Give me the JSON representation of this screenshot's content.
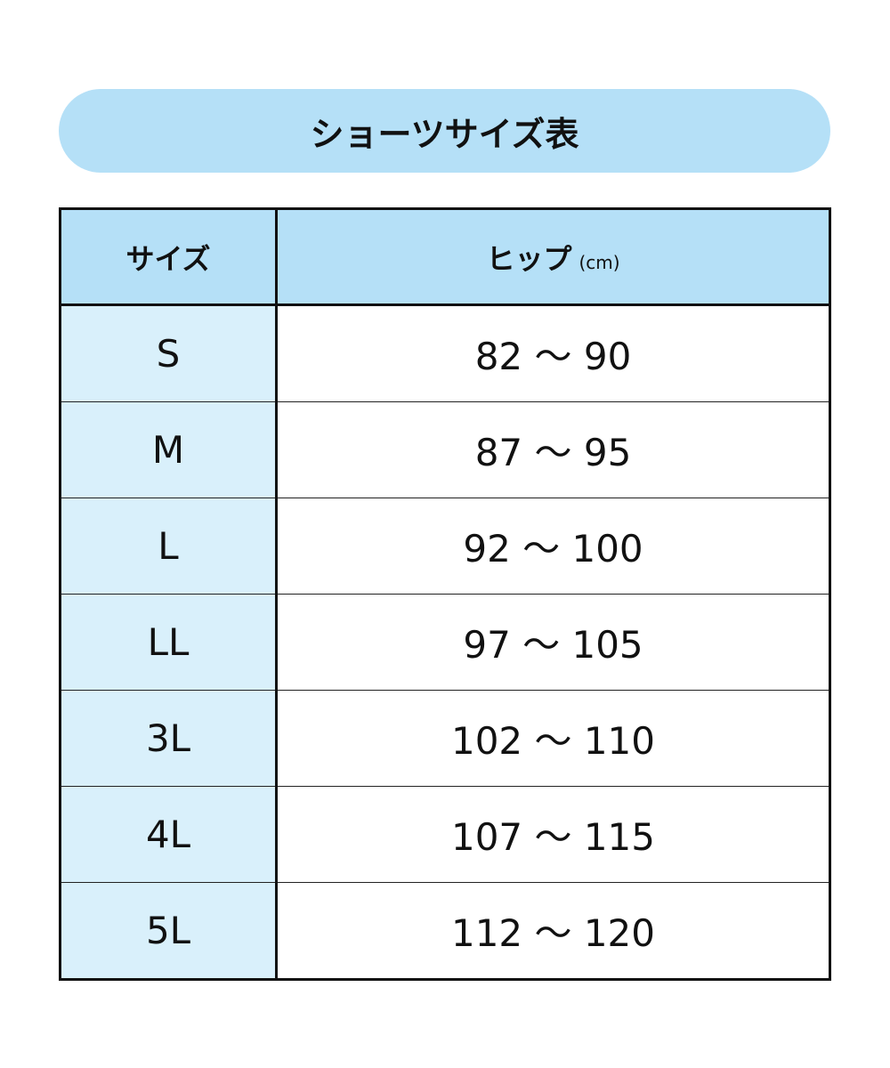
{
  "title": "ショーツサイズ表",
  "header": {
    "size": "サイズ",
    "hip": "ヒップ",
    "unit": "(cm)"
  },
  "rows": [
    {
      "size": "S",
      "hip": "82 〜 90"
    },
    {
      "size": "M",
      "hip": "87 〜 95"
    },
    {
      "size": "L",
      "hip": "92 〜 100"
    },
    {
      "size": "LL",
      "hip": "97 〜 105"
    },
    {
      "size": "3L",
      "hip": "102 〜 110"
    },
    {
      "size": "4L",
      "hip": "107 〜 115"
    },
    {
      "size": "5L",
      "hip": "112 〜 120"
    }
  ],
  "colors": {
    "header_bg": "#b5e0f7",
    "size_col_bg": "#d9f0fb"
  }
}
